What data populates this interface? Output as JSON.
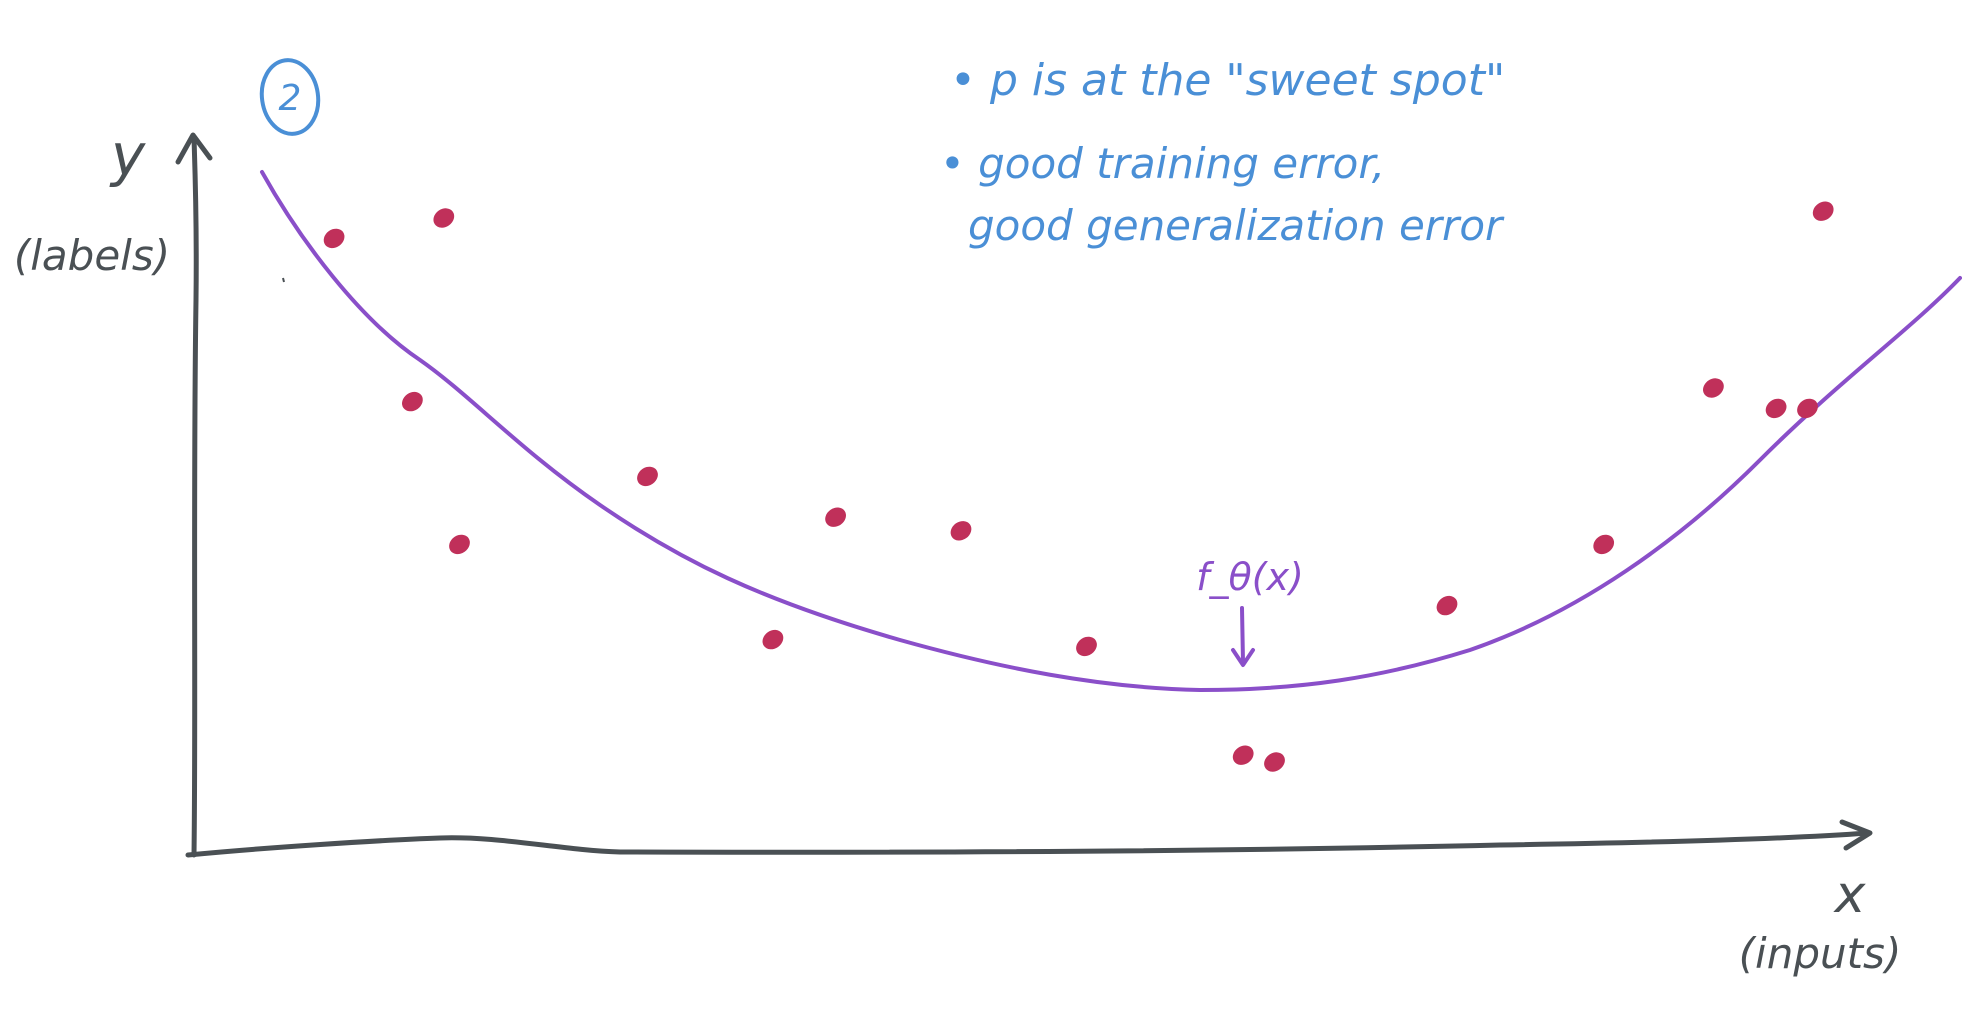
{
  "panel_number": "2",
  "axes": {
    "y_label": "y",
    "y_sublabel": "(labels)",
    "x_label": "x",
    "x_sublabel": "(inputs)"
  },
  "notes": {
    "line1": "• p is at the \"sweet spot\"",
    "line2": "• good training error,",
    "line3": "good generalization error"
  },
  "curve_label": "f_θ(x)",
  "colors": {
    "axis": "#4a5054",
    "notes": "#4a8fd6",
    "curve": "#8a4fc9",
    "points": "#c0305a"
  },
  "chart_data": {
    "type": "scatter",
    "description": "Hand-drawn sketch of data points with a smooth U-shaped fitted curve",
    "x": [
      0.06,
      0.13,
      0.11,
      0.14,
      0.26,
      0.34,
      0.38,
      0.46,
      0.54,
      0.66,
      0.64,
      0.77,
      0.87,
      0.94,
      0.98,
      1.01,
      1.0
    ],
    "y": [
      0.87,
      0.9,
      0.63,
      0.42,
      0.52,
      0.28,
      0.46,
      0.44,
      0.27,
      0.1,
      0.11,
      0.33,
      0.42,
      0.65,
      0.62,
      0.91,
      0.62
    ],
    "curve": {
      "name": "f_θ(x)",
      "x": [
        0.0,
        0.1,
        0.2,
        0.3,
        0.4,
        0.5,
        0.55,
        0.6,
        0.7,
        0.8,
        0.9,
        1.0,
        1.05
      ],
      "y": [
        0.97,
        0.76,
        0.56,
        0.4,
        0.3,
        0.24,
        0.23,
        0.24,
        0.27,
        0.34,
        0.48,
        0.69,
        0.82
      ]
    }
  }
}
